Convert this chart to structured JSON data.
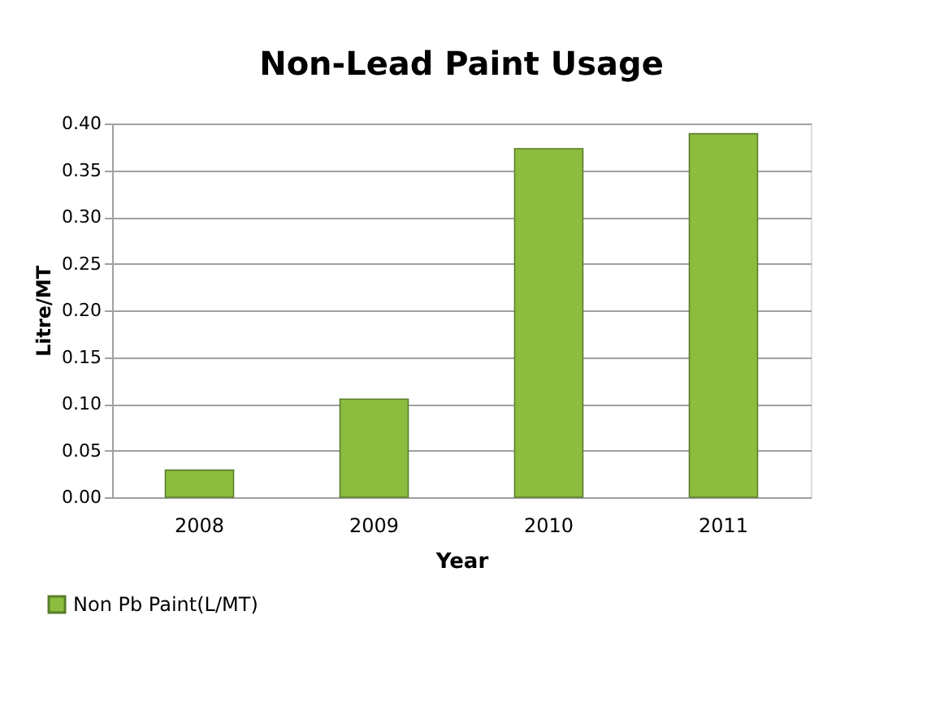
{
  "chart_data": {
    "type": "bar",
    "title": "Non-Lead Paint Usage",
    "xlabel": "Year",
    "ylabel": "Litre/MT",
    "categories": [
      "2008",
      "2009",
      "2010",
      "2011"
    ],
    "series": [
      {
        "name": "Non Pb Paint(L/MT)",
        "color": "#8cbd3f",
        "values": [
          0.029,
          0.105,
          0.373,
          0.389
        ]
      }
    ],
    "ylim": [
      0,
      0.4
    ],
    "yticks": [
      {
        "value": 0,
        "label": "0.00"
      },
      {
        "value": 0.05,
        "label": "0.05"
      },
      {
        "value": 0.1,
        "label": "0.10"
      },
      {
        "value": 0.15,
        "label": "0.15"
      },
      {
        "value": 0.2,
        "label": "0.20"
      },
      {
        "value": 0.25,
        "label": "0.25"
      },
      {
        "value": 0.3,
        "label": "0.30"
      },
      {
        "value": 0.35,
        "label": "0.35"
      },
      {
        "value": 0.4,
        "label": "0.40"
      }
    ],
    "grid": "y",
    "legend": "bottom left"
  }
}
